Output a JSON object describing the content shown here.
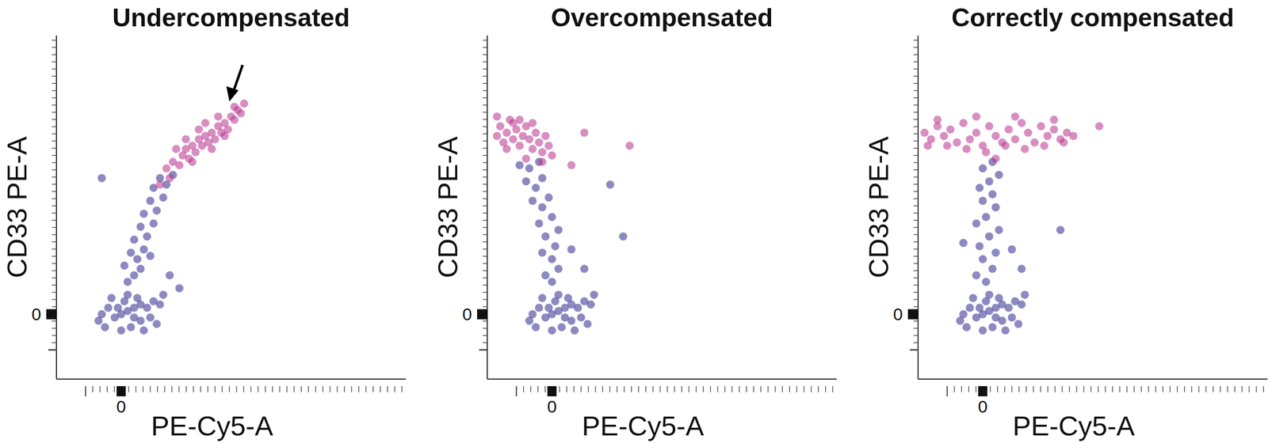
{
  "chart_data": [
    {
      "type": "scatter",
      "title": "Undercompensated",
      "x_label": "PE-Cy5-A",
      "y_label": "CD33 PE-A",
      "xlim": [
        -1,
        4.4
      ],
      "ylim": [
        -1,
        4.3
      ],
      "xticks": [
        0
      ],
      "yticks": [
        0
      ],
      "series": [
        {
          "color": "#2f2a8e",
          "x": [
            0,
            0.1,
            -0.1,
            0.2,
            -0.2,
            0.3,
            -0.25,
            0.05,
            0.15,
            0.4,
            0.5,
            -0.3,
            0.25,
            0.35,
            0,
            -0.15,
            0.45,
            0.6,
            0.1,
            -0.05,
            0.2,
            0.3,
            0.55,
            0.65,
            -0.35,
            0.1,
            0.2,
            0.05,
            0.25,
            0.15,
            0.35,
            0.2,
            0.4,
            0.3,
            0.5,
            0.35,
            0.55,
            0.45,
            0.65,
            0.5,
            0.7,
            0.6,
            0.8,
            -0.3,
            0.75,
            0.9,
            0.3,
            0.45
          ],
          "values": [
            0,
            0.05,
            -0.05,
            0.1,
            0.1,
            -0.1,
            -0.2,
            0.2,
            -0.2,
            0.1,
            0.2,
            0,
            0.25,
            -0.25,
            -0.25,
            0.25,
            -0.05,
            0.15,
            0.3,
            0.1,
            -0.05,
            0.15,
            -0.15,
            0.3,
            -0.1,
            0.5,
            0.6,
            0.75,
            0.85,
            0.95,
            1,
            1.15,
            1.2,
            1.35,
            1.4,
            1.55,
            1.6,
            1.75,
            1.8,
            1.95,
            2,
            2.1,
            2.15,
            2.1,
            0.6,
            0.4,
            0.7,
            0.9
          ]
        },
        {
          "color": "#b8328c",
          "x": [
            0.7,
            0.8,
            0.9,
            0.95,
            1,
            1.05,
            1.1,
            1.15,
            1.2,
            1.25,
            1.3,
            1.35,
            1.4,
            1.45,
            1.5,
            1.55,
            1.6,
            1.65,
            1.7,
            1.75,
            1.8,
            1.85,
            1.9,
            1.2,
            1,
            1.4,
            1.6,
            0.85,
            1.3,
            1.75,
            0.75,
            0.6,
            1.1,
            1.5
          ],
          "values": [
            2.25,
            2.35,
            2.3,
            2.45,
            2.55,
            2.4,
            2.6,
            2.5,
            2.7,
            2.6,
            2.75,
            2.65,
            2.8,
            2.7,
            2.9,
            2.8,
            2.95,
            2.85,
            3.05,
            3,
            3.15,
            3.1,
            3.25,
            2.85,
            2.7,
            2.55,
            2.75,
            2.55,
            2.95,
            3.2,
            2.1,
            2,
            2.35,
            3.05
          ]
        }
      ]
    },
    {
      "type": "scatter",
      "title": "Overcompensated",
      "x_label": "PE-Cy5-A",
      "y_label": "CD33 PE-A",
      "xlim": [
        -1,
        4.4
      ],
      "ylim": [
        -1,
        4.3
      ],
      "xticks": [
        0
      ],
      "yticks": [
        0
      ],
      "series": [
        {
          "color": "#2f2a8e",
          "x": [
            0,
            0.1,
            -0.1,
            0.2,
            -0.2,
            0.3,
            -0.25,
            0.05,
            0.15,
            0.4,
            0.5,
            -0.3,
            0.25,
            0.35,
            0,
            -0.15,
            0.45,
            0.6,
            0.1,
            -0.05,
            0.2,
            0.3,
            0.55,
            0.65,
            -0.35,
            0,
            -0.1,
            0.1,
            0,
            -0.15,
            0.05,
            -0.1,
            0.1,
            -0.2,
            0,
            -0.15,
            -0.3,
            -0.05,
            -0.25,
            -0.4,
            -0.15,
            -0.35,
            -0.5,
            -0.2,
            0.3,
            0.5,
            1.1,
            0.9
          ],
          "values": [
            0,
            0.05,
            -0.05,
            0.1,
            0.1,
            -0.1,
            -0.2,
            0.2,
            -0.2,
            0.1,
            0.2,
            0,
            0.25,
            -0.25,
            -0.25,
            0.25,
            -0.05,
            0.15,
            0.3,
            0.1,
            -0.05,
            0.15,
            -0.15,
            0.3,
            -0.1,
            0.5,
            0.6,
            0.7,
            0.85,
            0.95,
            1.05,
            1.2,
            1.3,
            1.4,
            1.5,
            1.65,
            1.75,
            1.8,
            1.95,
            2.05,
            2.1,
            2.25,
            2.3,
            2.35,
            1,
            0.7,
            1.2,
            2
          ]
        },
        {
          "color": "#b8328c",
          "x": [
            -0.85,
            -0.8,
            -0.75,
            -0.7,
            -0.65,
            -0.6,
            -0.55,
            -0.5,
            -0.45,
            -0.4,
            -0.35,
            -0.3,
            -0.25,
            -0.2,
            -0.15,
            -0.1,
            -0.05,
            0,
            -0.7,
            -0.5,
            -0.3,
            -0.6,
            -0.85,
            0.3,
            0.5,
            1.2,
            -0.4,
            -0.15,
            -1.05
          ],
          "values": [
            2.75,
            2.9,
            2.65,
            2.8,
            3,
            2.7,
            2.85,
            2.6,
            2.75,
            2.9,
            2.7,
            2.55,
            2.8,
            2.65,
            2.5,
            2.75,
            2.6,
            2.45,
            2.55,
            3,
            2.95,
            2.95,
            3.05,
            2.3,
            2.8,
            2.6,
            2.4,
            2.35,
            2.8
          ]
        }
      ]
    },
    {
      "type": "scatter",
      "title": "Correctly compensated",
      "x_label": "PE-Cy5-A",
      "y_label": "CD33 PE-A",
      "xlim": [
        -1,
        4.4
      ],
      "ylim": [
        -1,
        4.3
      ],
      "xticks": [
        0
      ],
      "yticks": [
        0
      ],
      "series": [
        {
          "color": "#2f2a8e",
          "x": [
            0,
            0.1,
            -0.1,
            0.2,
            -0.2,
            0.3,
            -0.25,
            0.05,
            0.15,
            0.4,
            0.5,
            -0.3,
            0.25,
            0.35,
            0,
            -0.15,
            0.45,
            0.6,
            0.1,
            -0.05,
            0.2,
            0.3,
            0.55,
            0.65,
            -0.35,
            0.05,
            -0.1,
            0.15,
            0,
            0.2,
            -0.05,
            0.1,
            0.25,
            -0.1,
            0.05,
            0.2,
            0,
            0.15,
            -0.05,
            0.1,
            0.25,
            0,
            0.15,
            0.45,
            0.6,
            1.2,
            -0.3
          ],
          "values": [
            0,
            0.05,
            -0.05,
            0.1,
            0.1,
            -0.1,
            -0.2,
            0.2,
            -0.2,
            0.1,
            0.2,
            0,
            0.25,
            -0.25,
            -0.25,
            0.25,
            -0.05,
            0.15,
            0.3,
            0.1,
            -0.05,
            0.15,
            -0.15,
            0.3,
            -0.1,
            0.5,
            0.6,
            0.7,
            0.85,
            0.95,
            1.05,
            1.2,
            1.3,
            1.4,
            1.5,
            1.65,
            1.75,
            1.85,
            1.95,
            2.05,
            2.15,
            2.25,
            2.35,
            1,
            0.7,
            1.3,
            1.1
          ]
        },
        {
          "color": "#b8328c",
          "x": [
            -0.9,
            -0.8,
            -0.7,
            -0.6,
            -0.5,
            -0.4,
            -0.3,
            -0.2,
            -0.1,
            0,
            0.1,
            0.2,
            0.3,
            0.4,
            0.5,
            0.6,
            0.7,
            0.8,
            0.9,
            1,
            1.1,
            1.2,
            1.3,
            1.4,
            -0.85,
            -0.55,
            -0.25,
            0.05,
            0.35,
            0.65,
            0.95,
            1.25,
            -0.7,
            -0.1,
            0.5,
            1.1,
            0.2,
            1.8
          ],
          "values": [
            2.8,
            2.7,
            2.9,
            2.75,
            2.85,
            2.65,
            2.95,
            2.7,
            2.8,
            2.6,
            2.9,
            2.75,
            2.65,
            2.85,
            2.7,
            2.95,
            2.8,
            2.65,
            2.9,
            2.75,
            2.85,
            2.7,
            2.8,
            2.75,
            2.6,
            2.6,
            2.55,
            2.5,
            2.6,
            2.55,
            2.6,
            2.65,
            3,
            3.05,
            3.05,
            3,
            2.4,
            2.9
          ]
        }
      ]
    }
  ]
}
